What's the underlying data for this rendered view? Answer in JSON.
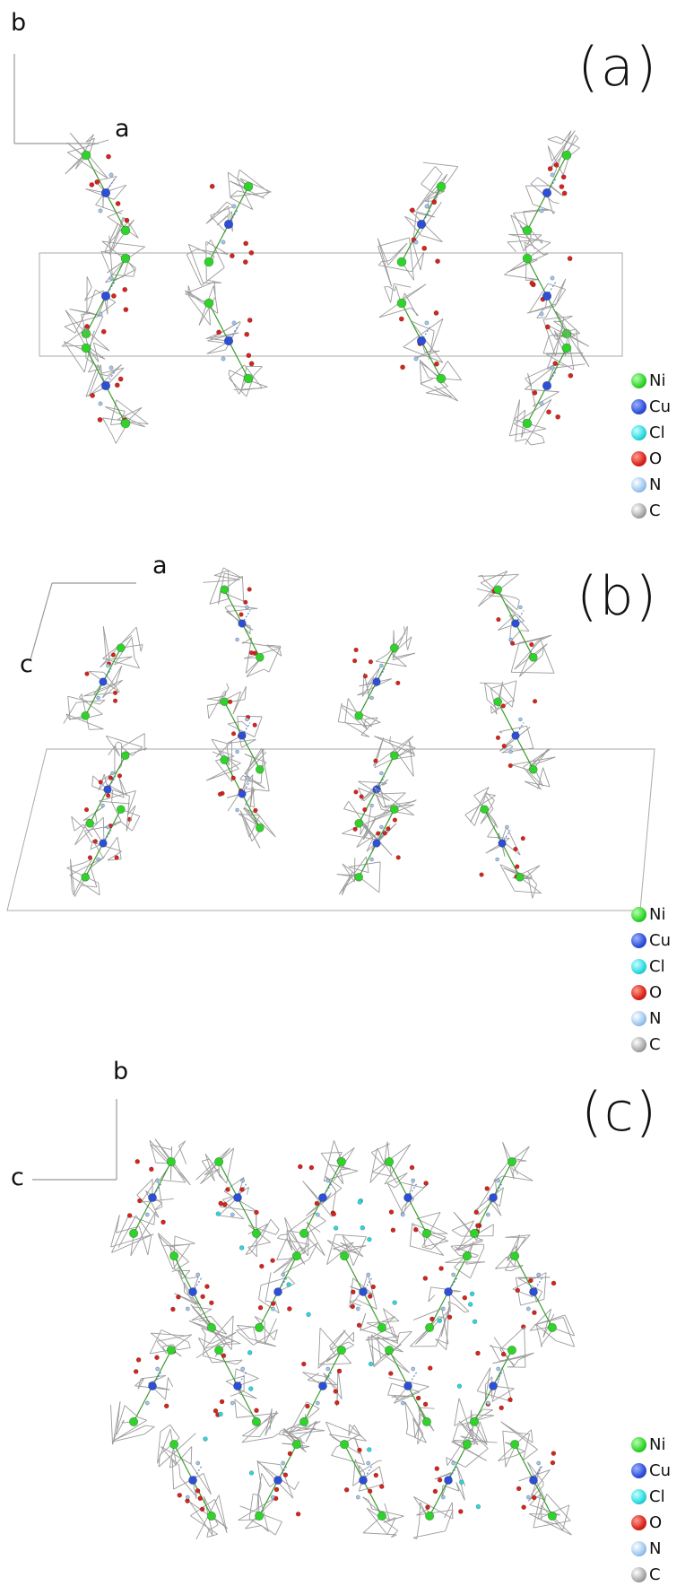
{
  "panels": [
    {
      "label": "(a)",
      "axes": {
        "vertical": "b",
        "horizontal": "a"
      }
    },
    {
      "label": "(b)",
      "axes": {
        "horizontal": "a",
        "oblique": "c"
      }
    },
    {
      "label": "(c)",
      "axes": {
        "vertical": "b",
        "horizontal": "c"
      }
    }
  ],
  "legend": [
    {
      "label": "Ni",
      "color": "#2fd32a"
    },
    {
      "label": "Cu",
      "color": "#2d4fd8"
    },
    {
      "label": "Cl",
      "color": "#2ad9df"
    },
    {
      "label": "O",
      "color": "#d8231b"
    },
    {
      "label": "N",
      "color": "#9cc6f0"
    },
    {
      "label": "C",
      "color": "#a8a8a8"
    }
  ]
}
